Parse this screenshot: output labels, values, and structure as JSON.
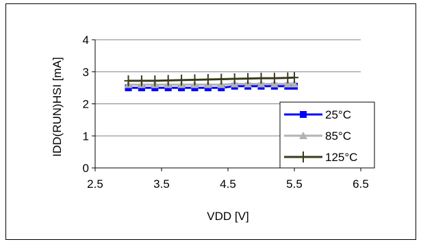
{
  "chart_data": {
    "type": "line",
    "title": "",
    "xlabel": "VDD [V]",
    "ylabel": "IDD(RUN)HSI [mA]",
    "xlim": [
      2.5,
      6.5
    ],
    "ylim": [
      0,
      4
    ],
    "x_ticks": [
      "2.5",
      "3.5",
      "4.5",
      "5.5",
      "6.5"
    ],
    "y_ticks": [
      "0",
      "1",
      "2",
      "3",
      "4"
    ],
    "grid": "horizontal",
    "legend_position": "bottom-right",
    "x": [
      3.0,
      3.2,
      3.4,
      3.6,
      3.8,
      4.0,
      4.2,
      4.4,
      4.6,
      4.8,
      5.0,
      5.2,
      5.4,
      5.5
    ],
    "series": [
      {
        "name": "25°C",
        "color": "#0000ff",
        "marker": "square",
        "values": [
          2.5,
          2.5,
          2.5,
          2.5,
          2.5,
          2.5,
          2.5,
          2.5,
          2.55,
          2.55,
          2.55,
          2.55,
          2.55,
          2.55
        ]
      },
      {
        "name": "85°C",
        "color": "#b3b3b3",
        "marker": "triangle",
        "values": [
          2.6,
          2.6,
          2.6,
          2.6,
          2.6,
          2.6,
          2.6,
          2.6,
          2.62,
          2.62,
          2.62,
          2.62,
          2.62,
          2.62
        ]
      },
      {
        "name": "125°C",
        "color": "#3a3a1a",
        "marker": "plus",
        "values": [
          2.72,
          2.72,
          2.72,
          2.73,
          2.74,
          2.75,
          2.76,
          2.77,
          2.78,
          2.79,
          2.8,
          2.8,
          2.81,
          2.82
        ]
      }
    ]
  }
}
